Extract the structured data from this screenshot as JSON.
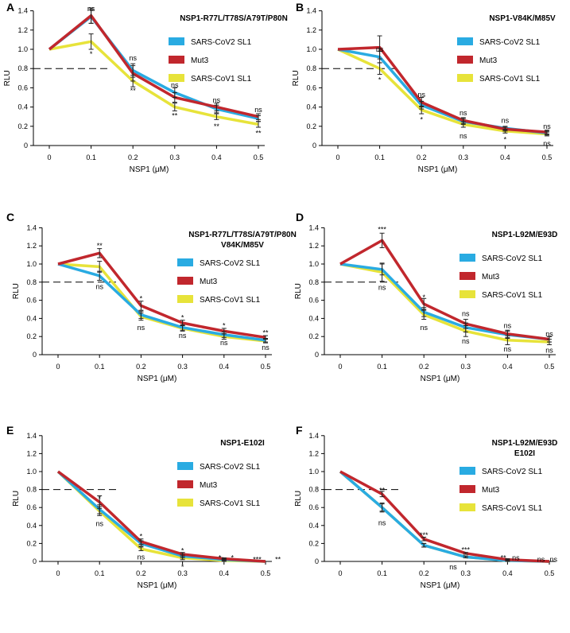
{
  "legend_colors": {
    "SARS-CoV2 SL1": "#29abe2",
    "Mut3": "#c1272d",
    "SARS-CoV1 SL1": "#e7e33a"
  },
  "chart_data": [
    {
      "panel": "A",
      "type": "line",
      "title_lines": [
        "NSP1-R77L/T78S/A79T/P80N"
      ],
      "xlabel": "NSP1 (μM)",
      "ylabel": "RLU",
      "x": [
        0,
        0.1,
        0.2,
        0.3,
        0.4,
        0.5
      ],
      "x_tick_labels": [
        "0",
        "0.1",
        "0.2",
        "0.3",
        "0.4",
        "0.5"
      ],
      "ylim": [
        0,
        1.4
      ],
      "y_tick_labels": [
        "0",
        "0.2",
        "0.4",
        "0.6",
        "0.8",
        "1.0",
        "1.2",
        "1.4"
      ],
      "reference_line": 0.8,
      "series": [
        {
          "name": "SARS-CoV2 SL1",
          "values": [
            1.0,
            1.34,
            0.78,
            0.55,
            0.38,
            0.28
          ],
          "errors": [
            0,
            0.07,
            0.07,
            0.05,
            0.04,
            0.03
          ]
        },
        {
          "name": "Mut3",
          "values": [
            1.0,
            1.35,
            0.75,
            0.5,
            0.4,
            0.3
          ],
          "errors": [
            0,
            0.08,
            0.08,
            0.05,
            0.04,
            0.03
          ]
        },
        {
          "name": "SARS-CoV1 SL1",
          "values": [
            1.0,
            1.08,
            0.67,
            0.4,
            0.3,
            0.22
          ],
          "errors": [
            0,
            0.08,
            0.06,
            0.04,
            0.03,
            0.03
          ]
        }
      ],
      "annotations": [
        {
          "x": 0.1,
          "y": 1.42,
          "text": "ns"
        },
        {
          "x": 0.1,
          "y": 0.95,
          "text": "*"
        },
        {
          "x": 0.2,
          "y": 0.91,
          "text": "ns"
        },
        {
          "x": 0.2,
          "y": 0.57,
          "text": "**"
        },
        {
          "x": 0.3,
          "y": 0.63,
          "text": "ns"
        },
        {
          "x": 0.3,
          "y": 0.31,
          "text": "**"
        },
        {
          "x": 0.4,
          "y": 0.47,
          "text": "ns"
        },
        {
          "x": 0.4,
          "y": 0.2,
          "text": "**"
        },
        {
          "x": 0.5,
          "y": 0.37,
          "text": "ns"
        },
        {
          "x": 0.5,
          "y": 0.13,
          "text": "**"
        }
      ]
    },
    {
      "panel": "B",
      "type": "line",
      "title_lines": [
        "NSP1-V84K/M85V"
      ],
      "xlabel": "NSP1 (μM)",
      "ylabel": "RLU",
      "x": [
        0,
        0.1,
        0.2,
        0.3,
        0.4,
        0.5
      ],
      "x_tick_labels": [
        "0",
        "0.1",
        "0.2",
        "0.3",
        "0.4",
        "0.5"
      ],
      "ylim": [
        0,
        1.4
      ],
      "y_tick_labels": [
        "0",
        "0.2",
        "0.4",
        "0.6",
        "0.8",
        "1.0",
        "1.2",
        "1.4"
      ],
      "reference_line": 0.8,
      "series": [
        {
          "name": "SARS-CoV2 SL1",
          "values": [
            1.0,
            0.92,
            0.42,
            0.25,
            0.18,
            0.13
          ],
          "errors": [
            0,
            0.06,
            0.04,
            0.03,
            0.02,
            0.02
          ]
        },
        {
          "name": "Mut3",
          "values": [
            1.0,
            1.02,
            0.45,
            0.26,
            0.17,
            0.14
          ],
          "errors": [
            0,
            0.12,
            0.05,
            0.03,
            0.02,
            0.02
          ]
        },
        {
          "name": "SARS-CoV1 SL1",
          "values": [
            1.0,
            0.8,
            0.37,
            0.22,
            0.15,
            0.12
          ],
          "errors": [
            0,
            0.06,
            0.04,
            0.03,
            0.02,
            0.02
          ]
        }
      ],
      "annotations": [
        {
          "x": 0.1,
          "y": 1.0,
          "text": "ns"
        },
        {
          "x": 0.1,
          "y": 0.68,
          "text": "*"
        },
        {
          "x": 0.2,
          "y": 0.53,
          "text": "ns"
        },
        {
          "x": 0.2,
          "y": 0.27,
          "text": "*"
        },
        {
          "x": 0.3,
          "y": 0.34,
          "text": "ns"
        },
        {
          "x": 0.3,
          "y": 0.1,
          "text": "ns"
        },
        {
          "x": 0.4,
          "y": 0.26,
          "text": "ns"
        },
        {
          "x": 0.4,
          "y": 0.06,
          "text": "*"
        },
        {
          "x": 0.5,
          "y": 0.2,
          "text": "ns"
        },
        {
          "x": 0.5,
          "y": 0.02,
          "text": "ns"
        }
      ]
    },
    {
      "panel": "C",
      "type": "line",
      "title_lines": [
        "NSP1-R77L/T78S/A79T/P80N",
        "V84K/M85V"
      ],
      "xlabel": "NSP1 (μM)",
      "ylabel": "RLU",
      "x": [
        0,
        0.1,
        0.2,
        0.3,
        0.4,
        0.5
      ],
      "x_tick_labels": [
        "0",
        "0.1",
        "0.2",
        "0.3",
        "0.4",
        "0.5"
      ],
      "ylim": [
        0,
        1.4
      ],
      "y_tick_labels": [
        "0",
        "0.2",
        "0.4",
        "0.6",
        "0.8",
        "1.0",
        "1.2",
        "1.4"
      ],
      "reference_line": 0.8,
      "series": [
        {
          "name": "SARS-CoV2 SL1",
          "values": [
            1.0,
            0.87,
            0.44,
            0.3,
            0.22,
            0.16
          ],
          "errors": [
            0,
            0.05,
            0.04,
            0.03,
            0.03,
            0.02
          ]
        },
        {
          "name": "Mut3",
          "values": [
            1.0,
            1.12,
            0.54,
            0.35,
            0.26,
            0.19
          ],
          "errors": [
            0,
            0.05,
            0.05,
            0.03,
            0.03,
            0.02
          ]
        },
        {
          "name": "SARS-CoV1 SL1",
          "values": [
            1.0,
            0.97,
            0.42,
            0.29,
            0.2,
            0.15
          ],
          "errors": [
            0,
            0.06,
            0.04,
            0.03,
            0.03,
            0.02
          ]
        }
      ],
      "annotations": [
        {
          "x": 0.1,
          "y": 1.2,
          "text": "**"
        },
        {
          "x": 0.1,
          "y": 0.75,
          "text": "ns"
        },
        {
          "x": 0.2,
          "y": 0.62,
          "text": "*"
        },
        {
          "x": 0.2,
          "y": 0.3,
          "text": "ns"
        },
        {
          "x": 0.3,
          "y": 0.41,
          "text": "*"
        },
        {
          "x": 0.3,
          "y": 0.21,
          "text": "ns"
        },
        {
          "x": 0.4,
          "y": 0.32,
          "text": "*"
        },
        {
          "x": 0.4,
          "y": 0.13,
          "text": "ns"
        },
        {
          "x": 0.5,
          "y": 0.24,
          "text": "**"
        },
        {
          "x": 0.5,
          "y": 0.08,
          "text": "ns"
        }
      ]
    },
    {
      "panel": "D",
      "type": "line",
      "title_lines": [
        "NSP1-L92M/E93D"
      ],
      "xlabel": "NSP1 (μM)",
      "ylabel": "RLU",
      "x": [
        0,
        0.1,
        0.2,
        0.3,
        0.4,
        0.5
      ],
      "x_tick_labels": [
        "0",
        "0.1",
        "0.2",
        "0.3",
        "0.4",
        "0.5"
      ],
      "ylim": [
        0,
        1.4
      ],
      "y_tick_labels": [
        "0",
        "0.2",
        "0.4",
        "0.6",
        "0.8",
        "1.0",
        "1.2",
        "1.4"
      ],
      "reference_line": 0.8,
      "series": [
        {
          "name": "SARS-CoV2 SL1",
          "values": [
            1.0,
            0.94,
            0.47,
            0.3,
            0.22,
            0.17
          ],
          "errors": [
            0,
            0.06,
            0.05,
            0.05,
            0.04,
            0.03
          ]
        },
        {
          "name": "Mut3",
          "values": [
            1.0,
            1.26,
            0.56,
            0.34,
            0.23,
            0.17
          ],
          "errors": [
            0,
            0.08,
            0.06,
            0.05,
            0.04,
            0.03
          ]
        },
        {
          "name": "SARS-CoV1 SL1",
          "values": [
            1.0,
            0.91,
            0.44,
            0.26,
            0.16,
            0.14
          ],
          "errors": [
            0,
            0.1,
            0.05,
            0.06,
            0.05,
            0.03
          ]
        }
      ],
      "annotations": [
        {
          "x": 0.1,
          "y": 1.38,
          "text": "***"
        },
        {
          "x": 0.1,
          "y": 0.74,
          "text": "ns"
        },
        {
          "x": 0.2,
          "y": 0.63,
          "text": "*"
        },
        {
          "x": 0.2,
          "y": 0.3,
          "text": "ns"
        },
        {
          "x": 0.3,
          "y": 0.45,
          "text": "ns"
        },
        {
          "x": 0.3,
          "y": 0.15,
          "text": "ns"
        },
        {
          "x": 0.4,
          "y": 0.32,
          "text": "ns"
        },
        {
          "x": 0.4,
          "y": 0.06,
          "text": "ns"
        },
        {
          "x": 0.5,
          "y": 0.23,
          "text": "ns"
        },
        {
          "x": 0.5,
          "y": 0.05,
          "text": "ns"
        }
      ]
    },
    {
      "panel": "E",
      "type": "line",
      "title_lines": [
        "NSP1-E102I"
      ],
      "xlabel": "NSP1 (μM)",
      "ylabel": "RLU",
      "x": [
        0,
        0.1,
        0.2,
        0.3,
        0.4,
        0.5
      ],
      "x_tick_labels": [
        "0",
        "0.1",
        "0.2",
        "0.3",
        "0.4",
        "0.5"
      ],
      "ylim": [
        0,
        1.4
      ],
      "y_tick_labels": [
        "0",
        "0.2",
        "0.4",
        "0.6",
        "0.8",
        "1.0",
        "1.2",
        "1.4"
      ],
      "reference_line": 0.8,
      "series": [
        {
          "name": "SARS-CoV2 SL1",
          "values": [
            1.0,
            0.58,
            0.2,
            0.06,
            0.02,
            0.0
          ],
          "errors": [
            0,
            0.05,
            0.03,
            0.02,
            0.01,
            0.0
          ]
        },
        {
          "name": "Mut3",
          "values": [
            1.0,
            0.66,
            0.22,
            0.08,
            0.03,
            0.0
          ],
          "errors": [
            0,
            0.07,
            0.03,
            0.02,
            0.01,
            0.0
          ]
        },
        {
          "name": "SARS-CoV1 SL1",
          "values": [
            1.0,
            0.56,
            0.14,
            0.04,
            0.01,
            0.0
          ],
          "errors": [
            0,
            0.05,
            0.02,
            0.02,
            0.01,
            0.0
          ]
        }
      ],
      "annotations": [
        {
          "x": 0.1,
          "y": 0.7,
          "text": "*"
        },
        {
          "x": 0.1,
          "y": 0.42,
          "text": "ns"
        },
        {
          "x": 0.2,
          "y": 0.28,
          "text": "*"
        },
        {
          "x": 0.2,
          "y": 0.05,
          "text": "ns"
        },
        {
          "x": 0.3,
          "y": 0.12,
          "text": "*"
        },
        {
          "x": 0.3,
          "y": -0.06,
          "text": "*"
        },
        {
          "x": 0.39,
          "y": 0.04,
          "text": "*"
        },
        {
          "x": 0.42,
          "y": 0.04,
          "text": "*"
        },
        {
          "x": 0.48,
          "y": 0.02,
          "text": "***"
        },
        {
          "x": 0.53,
          "y": 0.02,
          "text": "**"
        }
      ]
    },
    {
      "panel": "F",
      "type": "line",
      "title_lines": [
        "NSP1-L92M/E93D",
        "E102I"
      ],
      "xlabel": "NSP1 (μM)",
      "ylabel": "RLU",
      "x": [
        0,
        0.1,
        0.2,
        0.3,
        0.4,
        0.5
      ],
      "x_tick_labels": [
        "0",
        "0.1",
        "0.2",
        "0.3",
        "0.4",
        "0.5"
      ],
      "ylim": [
        0,
        1.4
      ],
      "y_tick_labels": [
        "0",
        "0.2",
        "0.4",
        "0.6",
        "0.8",
        "1.0",
        "1.2",
        "1.4"
      ],
      "reference_line": 0.8,
      "series": [
        {
          "name": "SARS-CoV2 SL1",
          "values": [
            1.0,
            0.6,
            0.18,
            0.05,
            0.01,
            0.0
          ],
          "errors": [
            0,
            0.05,
            0.02,
            0.01,
            0.01,
            0.0
          ]
        },
        {
          "name": "Mut3",
          "values": [
            1.0,
            0.75,
            0.25,
            0.09,
            0.02,
            0.0
          ],
          "errors": [
            0,
            0.03,
            0.02,
            0.01,
            0.01,
            0.0
          ]
        },
        {
          "name": "SARS-CoV1 SL1",
          "values": [
            1.0,
            0.6,
            0.18,
            0.05,
            0.01,
            0.0
          ],
          "errors": [
            0,
            0.04,
            0.02,
            0.01,
            0.01,
            0.0
          ]
        }
      ],
      "annotations": [
        {
          "x": 0.1,
          "y": 0.79,
          "text": "**"
        },
        {
          "x": 0.1,
          "y": 0.43,
          "text": "ns"
        },
        {
          "x": 0.2,
          "y": 0.29,
          "text": "***"
        },
        {
          "x": 0.3,
          "y": 0.13,
          "text": "***"
        },
        {
          "x": 0.27,
          "y": -0.06,
          "text": "ns"
        },
        {
          "x": 0.39,
          "y": 0.04,
          "text": "**"
        },
        {
          "x": 0.42,
          "y": 0.04,
          "text": "ns"
        },
        {
          "x": 0.48,
          "y": 0.02,
          "text": "ns"
        },
        {
          "x": 0.51,
          "y": 0.02,
          "text": "ns"
        }
      ]
    }
  ]
}
